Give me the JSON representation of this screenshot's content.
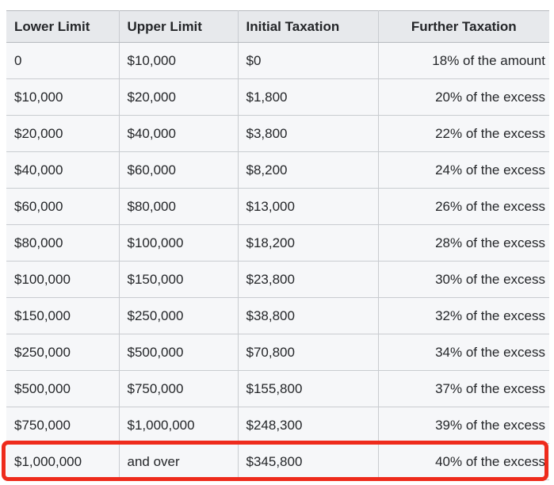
{
  "table": {
    "headers": [
      "Lower Limit",
      "Upper Limit",
      "Initial Taxation",
      "Further Taxation"
    ],
    "rows": [
      [
        "0",
        "$10,000",
        "$0",
        "18% of the amount"
      ],
      [
        "$10,000",
        "$20,000",
        "$1,800",
        "20% of the excess"
      ],
      [
        "$20,000",
        "$40,000",
        "$3,800",
        "22% of the excess"
      ],
      [
        "$40,000",
        "$60,000",
        "$8,200",
        "24% of the excess"
      ],
      [
        "$60,000",
        "$80,000",
        "$13,000",
        "26% of the excess"
      ],
      [
        "$80,000",
        "$100,000",
        "$18,200",
        "28% of the excess"
      ],
      [
        "$100,000",
        "$150,000",
        "$23,800",
        "30% of the excess"
      ],
      [
        "$150,000",
        "$250,000",
        "$38,800",
        "32% of the excess"
      ],
      [
        "$250,000",
        "$500,000",
        "$70,800",
        "34% of the excess"
      ],
      [
        "$500,000",
        "$750,000",
        "$155,800",
        "37% of the excess"
      ],
      [
        "$750,000",
        "$1,000,000",
        "$248,300",
        "39% of the excess"
      ],
      [
        "$1,000,000",
        "and over",
        "$345,800",
        "40% of the excess"
      ]
    ],
    "highlighted_row_index": 11
  },
  "colors": {
    "header_bg": "#e7e9ec",
    "row_bg": "#f6f7f9",
    "border": "#c9ccd0",
    "border_dark": "#b6babe",
    "highlight_box": "#ee2b1c",
    "text": "#242629"
  }
}
